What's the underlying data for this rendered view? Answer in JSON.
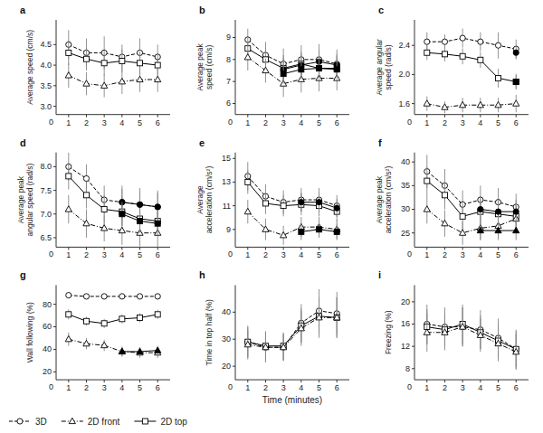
{
  "chart_data": [
    {
      "type": "line",
      "title": "a",
      "ylabel": "Average speed (cm/s)",
      "x": [
        1,
        2,
        3,
        4,
        5,
        6
      ],
      "xlim": [
        0.3,
        6.7
      ],
      "xticks": [
        1,
        2,
        3,
        4,
        5,
        6
      ],
      "ylim": [
        2.8,
        5.1
      ],
      "yticks": [
        {
          "value": 3.0,
          "label": "3.0"
        },
        3.5,
        {
          "value": 4.0,
          "label": "4.0"
        },
        4.5
      ],
      "grid": false,
      "color": "black",
      "legend": "lower left",
      "annotations": [
        {
          "text": "0"
        }
      ],
      "series": [
        {
          "name": "3D",
          "marker": "circle-open",
          "line_style": "dashed",
          "values": [
            4.5,
            4.3,
            4.3,
            4.2,
            4.3,
            4.2
          ],
          "errors": [
            0.35,
            0.35,
            0.4,
            0.3,
            0.35,
            0.3
          ]
        },
        {
          "name": "2D top",
          "marker": "square-open",
          "line_style": "solid",
          "values": [
            4.3,
            4.15,
            4.05,
            4.1,
            4.05,
            4.0
          ],
          "errors": [
            0.3,
            0.28,
            0.3,
            0.28,
            0.28,
            0.25
          ]
        },
        {
          "name": "2D front",
          "marker": "triangle-open",
          "line_style": "dashdot",
          "values": [
            3.75,
            3.55,
            3.5,
            3.6,
            3.65,
            3.65
          ],
          "errors": [
            0.3,
            0.28,
            0.28,
            0.3,
            0.3,
            0.3
          ]
        }
      ]
    },
    {
      "type": "line",
      "title": "b",
      "ylabel": "Average peak\nspeed (cm/s)",
      "x": [
        1,
        2,
        3,
        4,
        5,
        6
      ],
      "xlim": [
        0.3,
        6.7
      ],
      "xticks": [
        1,
        2,
        3,
        4,
        5,
        6
      ],
      "ylim": [
        5.5,
        9.8
      ],
      "yticks": [
        6,
        7,
        8,
        9
      ],
      "grid": false,
      "color": "black",
      "annotations": [
        {
          "text": "0"
        }
      ],
      "series": [
        {
          "marker": "circle-open",
          "line_style": "dashed",
          "values": [
            8.9,
            8.2,
            7.8,
            8.0,
            8.0,
            7.8
          ],
          "errors": [
            0.5,
            0.6,
            0.7,
            0.65,
            0.7,
            0.65
          ]
        },
        {
          "marker": "square-open",
          "line_style": "solid",
          "values": [
            8.5,
            8.0,
            7.6,
            7.8,
            7.6,
            7.6
          ],
          "errors": [
            0.5,
            0.55,
            0.6,
            0.55,
            0.6,
            0.55
          ]
        },
        {
          "marker": "triangle-open",
          "line_style": "dashdot",
          "values": [
            8.1,
            7.5,
            6.9,
            7.1,
            7.15,
            7.15
          ],
          "errors": [
            0.6,
            0.55,
            0.6,
            0.6,
            0.6,
            0.55
          ]
        },
        {
          "marker": "circle-filled",
          "line_style": "solid",
          "values": [
            null,
            null,
            7.55,
            7.75,
            7.9,
            7.75
          ],
          "errors": [
            null,
            null,
            0.5,
            0.5,
            0.55,
            0.5
          ]
        },
        {
          "marker": "square-filled",
          "line_style": "solid",
          "values": [
            null,
            null,
            7.35,
            7.55,
            7.6,
            7.55
          ],
          "errors": [
            null,
            null,
            0.45,
            0.45,
            0.5,
            0.45
          ]
        }
      ]
    },
    {
      "type": "line",
      "title": "c",
      "ylabel": "Average angular\nspeed (rad/s)",
      "x": [
        1,
        2,
        3,
        4,
        5,
        6
      ],
      "xlim": [
        0.3,
        6.7
      ],
      "xticks": [
        1,
        2,
        3,
        4,
        5,
        6
      ],
      "ylim": [
        1.45,
        2.75
      ],
      "yticks": [
        1.6,
        {
          "value": 2.0,
          "label": "2.0"
        },
        2.4
      ],
      "grid": false,
      "color": "black",
      "annotations": [
        {
          "text": "0"
        }
      ],
      "series": [
        {
          "marker": "circle-open",
          "line_style": "dashed",
          "values": [
            2.45,
            2.45,
            2.5,
            2.45,
            2.4,
            2.35
          ],
          "errors": [
            0.13,
            0.1,
            0.13,
            0.13,
            0.18,
            0.13
          ]
        },
        {
          "marker": "square-open",
          "line_style": "solid",
          "values": [
            2.3,
            2.28,
            2.25,
            2.2,
            1.95,
            1.9
          ],
          "errors": [
            0.1,
            0.1,
            0.11,
            0.11,
            0.13,
            0.11
          ]
        },
        {
          "marker": "triangle-open",
          "line_style": "dashdot",
          "values": [
            1.6,
            1.55,
            1.58,
            1.58,
            1.58,
            1.6
          ],
          "errors": [
            0.1,
            0.08,
            0.1,
            0.1,
            0.1,
            0.12
          ]
        },
        {
          "marker": "circle-filled",
          "line_style": "solid",
          "values": [
            null,
            null,
            null,
            null,
            null,
            2.3
          ],
          "errors": [
            null,
            null,
            null,
            null,
            null,
            0.09
          ]
        },
        {
          "marker": "square-filled",
          "line_style": "solid",
          "values": [
            null,
            null,
            null,
            null,
            null,
            1.9
          ],
          "errors": [
            null,
            null,
            null,
            null,
            null,
            0.09
          ]
        }
      ]
    },
    {
      "type": "line",
      "title": "d",
      "ylabel": "Average peak\nangular speed (rad/s)",
      "x": [
        1,
        2,
        3,
        4,
        5,
        6
      ],
      "xlim": [
        0.3,
        6.7
      ],
      "xticks": [
        1,
        2,
        3,
        4,
        5,
        6
      ],
      "ylim": [
        6.3,
        8.3
      ],
      "yticks": [
        6.5,
        {
          "value": 7.0,
          "label": "7.0"
        },
        7.5,
        {
          "value": 8.0,
          "label": "8.0"
        }
      ],
      "grid": false,
      "color": "black",
      "annotations": [
        {
          "text": "0"
        }
      ],
      "series": [
        {
          "marker": "circle-open",
          "line_style": "dashed",
          "values": [
            8.0,
            7.75,
            7.3,
            7.25,
            7.2,
            7.15
          ],
          "errors": [
            0.3,
            0.3,
            0.3,
            0.35,
            0.35,
            0.35
          ]
        },
        {
          "marker": "square-open",
          "line_style": "solid",
          "values": [
            7.8,
            7.4,
            7.1,
            7.05,
            6.9,
            6.85
          ],
          "errors": [
            0.28,
            0.28,
            0.3,
            0.3,
            0.3,
            0.3
          ]
        },
        {
          "marker": "triangle-open",
          "line_style": "dashdot",
          "values": [
            7.1,
            6.8,
            6.7,
            6.65,
            6.6,
            6.6
          ],
          "errors": [
            0.3,
            0.3,
            0.28,
            0.3,
            0.28,
            0.3
          ]
        },
        {
          "marker": "circle-filled",
          "line_style": "solid",
          "values": [
            null,
            null,
            null,
            7.25,
            7.2,
            7.15
          ],
          "errors": [
            null,
            null,
            null,
            0.28,
            0.28,
            0.3
          ]
        },
        {
          "marker": "square-filled",
          "line_style": "solid",
          "values": [
            null,
            null,
            null,
            7.0,
            6.85,
            6.8
          ],
          "errors": [
            null,
            null,
            null,
            0.25,
            0.25,
            0.25
          ]
        }
      ]
    },
    {
      "type": "line",
      "title": "e",
      "ylabel": "Average\nacceleration (cm/s²)",
      "x": [
        1,
        2,
        3,
        4,
        5,
        6
      ],
      "xlim": [
        0.3,
        6.7
      ],
      "xticks": [
        1,
        2,
        3,
        4,
        5,
        6
      ],
      "ylim": [
        7.5,
        15.5
      ],
      "yticks": [
        9,
        11,
        13,
        15
      ],
      "grid": false,
      "color": "black",
      "annotations": [
        {
          "text": "0"
        }
      ],
      "series": [
        {
          "marker": "circle-open",
          "line_style": "dashed",
          "values": [
            13.5,
            11.8,
            11.3,
            11.5,
            11.5,
            11.0
          ],
          "errors": [
            1.2,
            1.0,
            1.0,
            1.0,
            1.0,
            0.9
          ]
        },
        {
          "marker": "square-open",
          "line_style": "solid",
          "values": [
            13.0,
            11.2,
            11.0,
            11.1,
            11.0,
            10.5
          ],
          "errors": [
            1.0,
            0.9,
            0.9,
            0.9,
            0.9,
            0.85
          ]
        },
        {
          "marker": "triangle-open",
          "line_style": "dashdot",
          "values": [
            10.5,
            9.0,
            8.5,
            9.2,
            9.2,
            9.0
          ],
          "errors": [
            1.0,
            0.9,
            0.8,
            0.85,
            0.85,
            0.8
          ]
        },
        {
          "marker": "circle-filled",
          "line_style": "solid",
          "values": [
            null,
            null,
            null,
            11.3,
            11.3,
            10.8
          ],
          "errors": [
            null,
            null,
            null,
            0.8,
            0.8,
            0.75
          ]
        },
        {
          "marker": "square-filled",
          "line_style": "solid",
          "values": [
            null,
            null,
            null,
            8.8,
            9.0,
            8.8
          ],
          "errors": [
            null,
            null,
            null,
            0.7,
            0.7,
            0.7
          ]
        }
      ]
    },
    {
      "type": "line",
      "title": "f",
      "ylabel": "Average peak\nacceleration (cm/s²)",
      "x": [
        1,
        2,
        3,
        4,
        5,
        6
      ],
      "xlim": [
        0.3,
        6.7
      ],
      "xticks": [
        1,
        2,
        3,
        4,
        5,
        6
      ],
      "ylim": [
        22,
        42
      ],
      "yticks": [
        25,
        30,
        35,
        40
      ],
      "grid": false,
      "color": "black",
      "annotations": [
        {
          "text": "0"
        }
      ],
      "series": [
        {
          "marker": "circle-open",
          "line_style": "dashed",
          "values": [
            38.0,
            35.0,
            31.0,
            32.0,
            31.5,
            30.5
          ],
          "errors": [
            3.5,
            3.5,
            3.0,
            3.0,
            3.0,
            2.8
          ]
        },
        {
          "marker": "square-open",
          "line_style": "solid",
          "values": [
            36.0,
            33.0,
            28.5,
            29.5,
            29.0,
            28.5
          ],
          "errors": [
            3.0,
            3.0,
            2.8,
            2.8,
            2.8,
            2.8
          ]
        },
        {
          "marker": "triangle-open",
          "line_style": "dashdot",
          "values": [
            30.0,
            27.0,
            25.0,
            26.0,
            26.5,
            28.0
          ],
          "errors": [
            3.0,
            2.8,
            2.5,
            2.5,
            2.5,
            2.8
          ]
        },
        {
          "marker": "circle-filled",
          "line_style": "solid",
          "values": [
            null,
            null,
            null,
            30.0,
            29.5,
            29.5
          ],
          "errors": [
            null,
            null,
            null,
            2.5,
            2.5,
            2.5
          ]
        },
        {
          "marker": "triangle-filled",
          "line_style": "solid",
          "values": [
            null,
            null,
            null,
            25.5,
            25.5,
            25.5
          ],
          "errors": [
            null,
            null,
            null,
            2.0,
            2.0,
            2.0
          ]
        }
      ]
    },
    {
      "type": "line",
      "title": "g",
      "ylabel": "Wall following (%)",
      "x": [
        1,
        2,
        3,
        4,
        5,
        6
      ],
      "xlim": [
        0.3,
        6.7
      ],
      "xticks": [
        1,
        2,
        3,
        4,
        5,
        6
      ],
      "ylim": [
        13,
        97
      ],
      "yticks": [
        20,
        40,
        60,
        80
      ],
      "grid": false,
      "color": "black",
      "annotations": [
        {
          "text": "0"
        }
      ],
      "series": [
        {
          "marker": "circle-open",
          "line_style": "dashed",
          "values": [
            88.0,
            87.0,
            87.0,
            87.0,
            87.0,
            87.0
          ],
          "errors": [
            2.5,
            2.0,
            2.0,
            2.0,
            2.0,
            2.0
          ]
        },
        {
          "marker": "square-open",
          "line_style": "solid",
          "values": [
            71.0,
            65.0,
            63.0,
            67.0,
            68.0,
            71.0
          ],
          "errors": [
            4.5,
            4.0,
            4.0,
            4.0,
            4.0,
            4.0
          ]
        },
        {
          "marker": "triangle-open",
          "line_style": "dashdot",
          "values": [
            49.0,
            45.0,
            43.5,
            38.0,
            37.0,
            37.0
          ],
          "errors": [
            6.0,
            5.0,
            5.0,
            4.5,
            4.5,
            4.5
          ]
        },
        {
          "marker": "triangle-filled",
          "line_style": "solid",
          "values": [
            null,
            null,
            null,
            38.0,
            38.0,
            39.0
          ],
          "errors": [
            null,
            null,
            null,
            4.0,
            4.0,
            4.0
          ]
        }
      ]
    },
    {
      "type": "line",
      "title": "h",
      "ylabel": "Time in top half (%)",
      "xlabel": "Time (minutes)",
      "x": [
        1,
        2,
        3,
        4,
        5,
        6
      ],
      "xlim": [
        0.3,
        6.7
      ],
      "xticks": [
        1,
        2,
        3,
        4,
        5,
        6
      ],
      "ylim": [
        15,
        50
      ],
      "yticks": [
        20,
        30,
        40
      ],
      "grid": false,
      "color": "black",
      "annotations": [
        {
          "text": "0"
        }
      ],
      "series": [
        {
          "marker": "circle-open",
          "line_style": "dashed",
          "values": [
            29.0,
            27.0,
            27.0,
            36.0,
            40.5,
            39.5
          ],
          "errors": [
            6.0,
            5.5,
            5.0,
            7.0,
            8.0,
            8.0
          ]
        },
        {
          "marker": "square-open",
          "line_style": "solid",
          "values": [
            29.0,
            27.5,
            27.5,
            35.0,
            38.5,
            38.0
          ],
          "errors": [
            5.5,
            5.5,
            5.0,
            6.5,
            7.0,
            7.5
          ]
        },
        {
          "marker": "triangle-open",
          "line_style": "dashdot",
          "values": [
            28.0,
            27.0,
            27.0,
            34.0,
            38.0,
            38.0
          ],
          "errors": [
            5.5,
            5.5,
            5.0,
            6.5,
            7.5,
            7.5
          ]
        }
      ]
    },
    {
      "type": "line",
      "title": "i",
      "ylabel": "Freezing (%)",
      "x": [
        1,
        2,
        3,
        4,
        5,
        6
      ],
      "xlim": [
        0.3,
        6.7
      ],
      "xticks": [
        1,
        2,
        3,
        4,
        5,
        6
      ],
      "ylim": [
        6,
        23
      ],
      "yticks": [
        8,
        12,
        16,
        20
      ],
      "grid": false,
      "color": "black",
      "annotations": [
        {
          "text": "0"
        }
      ],
      "series": [
        {
          "marker": "circle-open",
          "line_style": "dashed",
          "values": [
            16.0,
            15.5,
            15.5,
            15.0,
            13.5,
            11.5
          ],
          "errors": [
            3.5,
            3.5,
            3.5,
            3.5,
            3.5,
            3.5
          ]
        },
        {
          "marker": "square-open",
          "line_style": "solid",
          "values": [
            15.5,
            15.0,
            16.0,
            14.5,
            13.0,
            11.5
          ],
          "errors": [
            3.2,
            3.0,
            3.5,
            3.0,
            3.2,
            3.2
          ]
        },
        {
          "marker": "triangle-open",
          "line_style": "dashdot",
          "values": [
            14.5,
            14.5,
            15.5,
            14.0,
            12.5,
            11.0
          ],
          "errors": [
            3.5,
            3.2,
            3.5,
            3.0,
            3.2,
            3.2
          ]
        }
      ]
    }
  ]
}
